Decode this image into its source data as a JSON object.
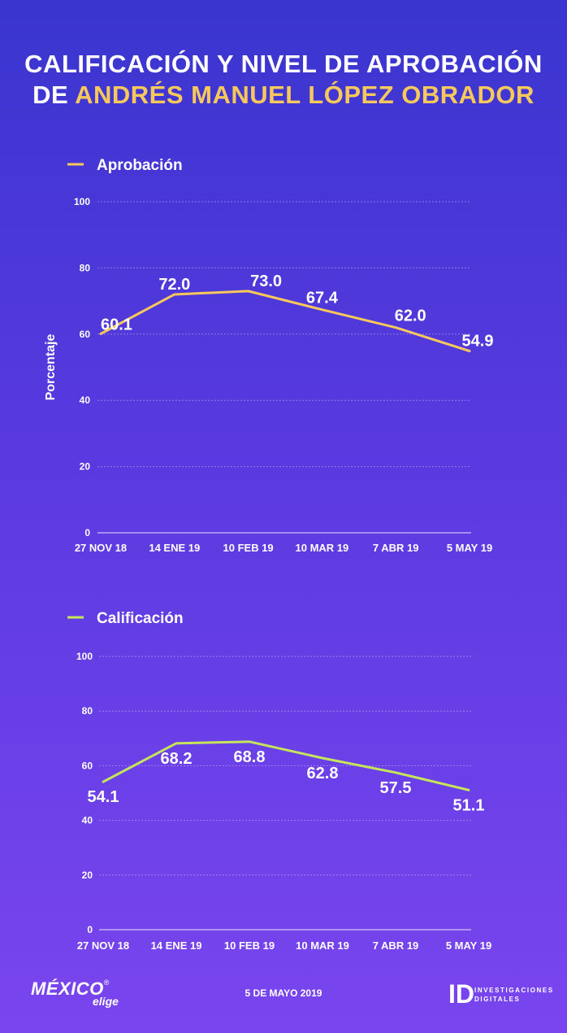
{
  "title": {
    "line1": "CALIFICACIÓN Y NIVEL DE APROBACIÓN",
    "line2_prefix": "DE ",
    "line2_highlight": "ANDRÉS MANUEL LÓPEZ OBRADOR"
  },
  "colors": {
    "aprobacion": "#f7c85b",
    "calificacion": "#c5e65a",
    "highlight": "#f7c85b"
  },
  "chart_data": [
    {
      "type": "line",
      "categories": [
        "27 NOV 18",
        "14 ENE 19",
        "10 FEB 19",
        "10 MAR 19",
        "7 ABR 19",
        "5 MAY 19"
      ],
      "series": [
        {
          "name": "Aprobación",
          "values": [
            60.1,
            72.0,
            73.0,
            67.4,
            62.0,
            54.9
          ]
        }
      ],
      "value_labels": [
        "60.1",
        "72.0",
        "73.0",
        "67.4",
        "62.0",
        "54.9"
      ],
      "ylabel": "Porcentaje",
      "ylim": [
        0,
        100
      ],
      "yticks": [
        0,
        20,
        40,
        60,
        80,
        100
      ],
      "grid": true,
      "legend": "top-left"
    },
    {
      "type": "line",
      "categories": [
        "27 NOV 18",
        "14 ENE 19",
        "10 FEB 19",
        "10 MAR 19",
        "7 ABR 19",
        "5 MAY 19"
      ],
      "series": [
        {
          "name": "Calificación",
          "values": [
            54.1,
            68.2,
            68.8,
            62.8,
            57.5,
            51.1
          ]
        }
      ],
      "value_labels": [
        "54.1",
        "68.2",
        "68.8",
        "62.8",
        "57.5",
        "51.1"
      ],
      "ylim": [
        0,
        100
      ],
      "yticks": [
        0,
        20,
        40,
        60,
        80,
        100
      ],
      "grid": true,
      "legend": "top-left"
    }
  ],
  "footer": {
    "date": "5 DE MAYO 2019",
    "logo_left_main": "MÉXICO",
    "logo_left_sub": "elige",
    "logo_left_reg": "®",
    "logo_right_mark": "ID",
    "logo_right_line1": "INVESTIGACIONES",
    "logo_right_line2": "DIGITALES"
  }
}
